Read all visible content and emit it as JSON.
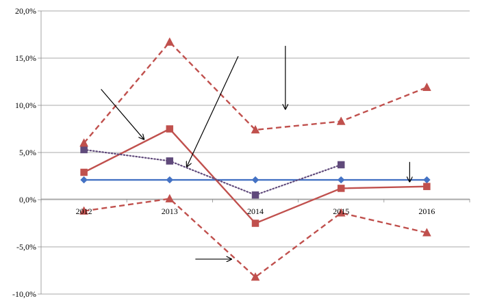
{
  "chart_data": {
    "type": "line",
    "categories": [
      "2012",
      "2013",
      "2014",
      "2015",
      "2016"
    ],
    "ylim": [
      -10,
      20
    ],
    "yticks": [
      -10,
      -5,
      0,
      5,
      10,
      15,
      20
    ],
    "ytick_labels": [
      "-10,0%",
      "-5,0%",
      "0,0%",
      "5,0%",
      "10,0%",
      "15,0%",
      "20,0%"
    ],
    "grid": true,
    "legend": "none",
    "series": [
      {
        "id": "blue-line",
        "color": "#4472c4",
        "line": "solid",
        "marker": "diamond",
        "values": [
          2.1,
          2.1,
          2.1,
          2.1,
          2.1
        ]
      },
      {
        "id": "red-solid",
        "color": "#c0504d",
        "line": "solid",
        "marker": "square",
        "values": [
          2.9,
          7.5,
          -2.5,
          1.2,
          1.4
        ]
      },
      {
        "id": "purple-dotted",
        "color": "#604a7b",
        "line": "dotted",
        "marker": "square",
        "values": [
          5.3,
          4.1,
          0.5,
          3.7,
          null
        ]
      },
      {
        "id": "red-dashed-upper",
        "color": "#c0504d",
        "line": "dashed",
        "marker": "triangle",
        "values": [
          6.0,
          16.7,
          7.4,
          8.3,
          11.9
        ]
      },
      {
        "id": "red-dashed-lower",
        "color": "#c0504d",
        "line": "dashed",
        "marker": "triangle",
        "values": [
          -1.2,
          0.1,
          -8.2,
          -1.4,
          -3.5
        ]
      }
    ],
    "annotations": [
      {
        "type": "arrow",
        "from": [
          2012.2,
          11.7
        ],
        "to": [
          2012.7,
          6.4
        ]
      },
      {
        "type": "arrow",
        "from": [
          2013.8,
          15.2
        ],
        "to": [
          2013.2,
          3.5
        ]
      },
      {
        "type": "arrow",
        "from": [
          2014.35,
          16.3
        ],
        "to": [
          2014.35,
          9.6
        ]
      },
      {
        "type": "arrow",
        "from": [
          2015.8,
          4.0
        ],
        "to": [
          2015.8,
          1.9
        ]
      },
      {
        "type": "arrow",
        "from": [
          2013.3,
          -6.3
        ],
        "to": [
          2013.72,
          -6.3
        ]
      }
    ]
  }
}
